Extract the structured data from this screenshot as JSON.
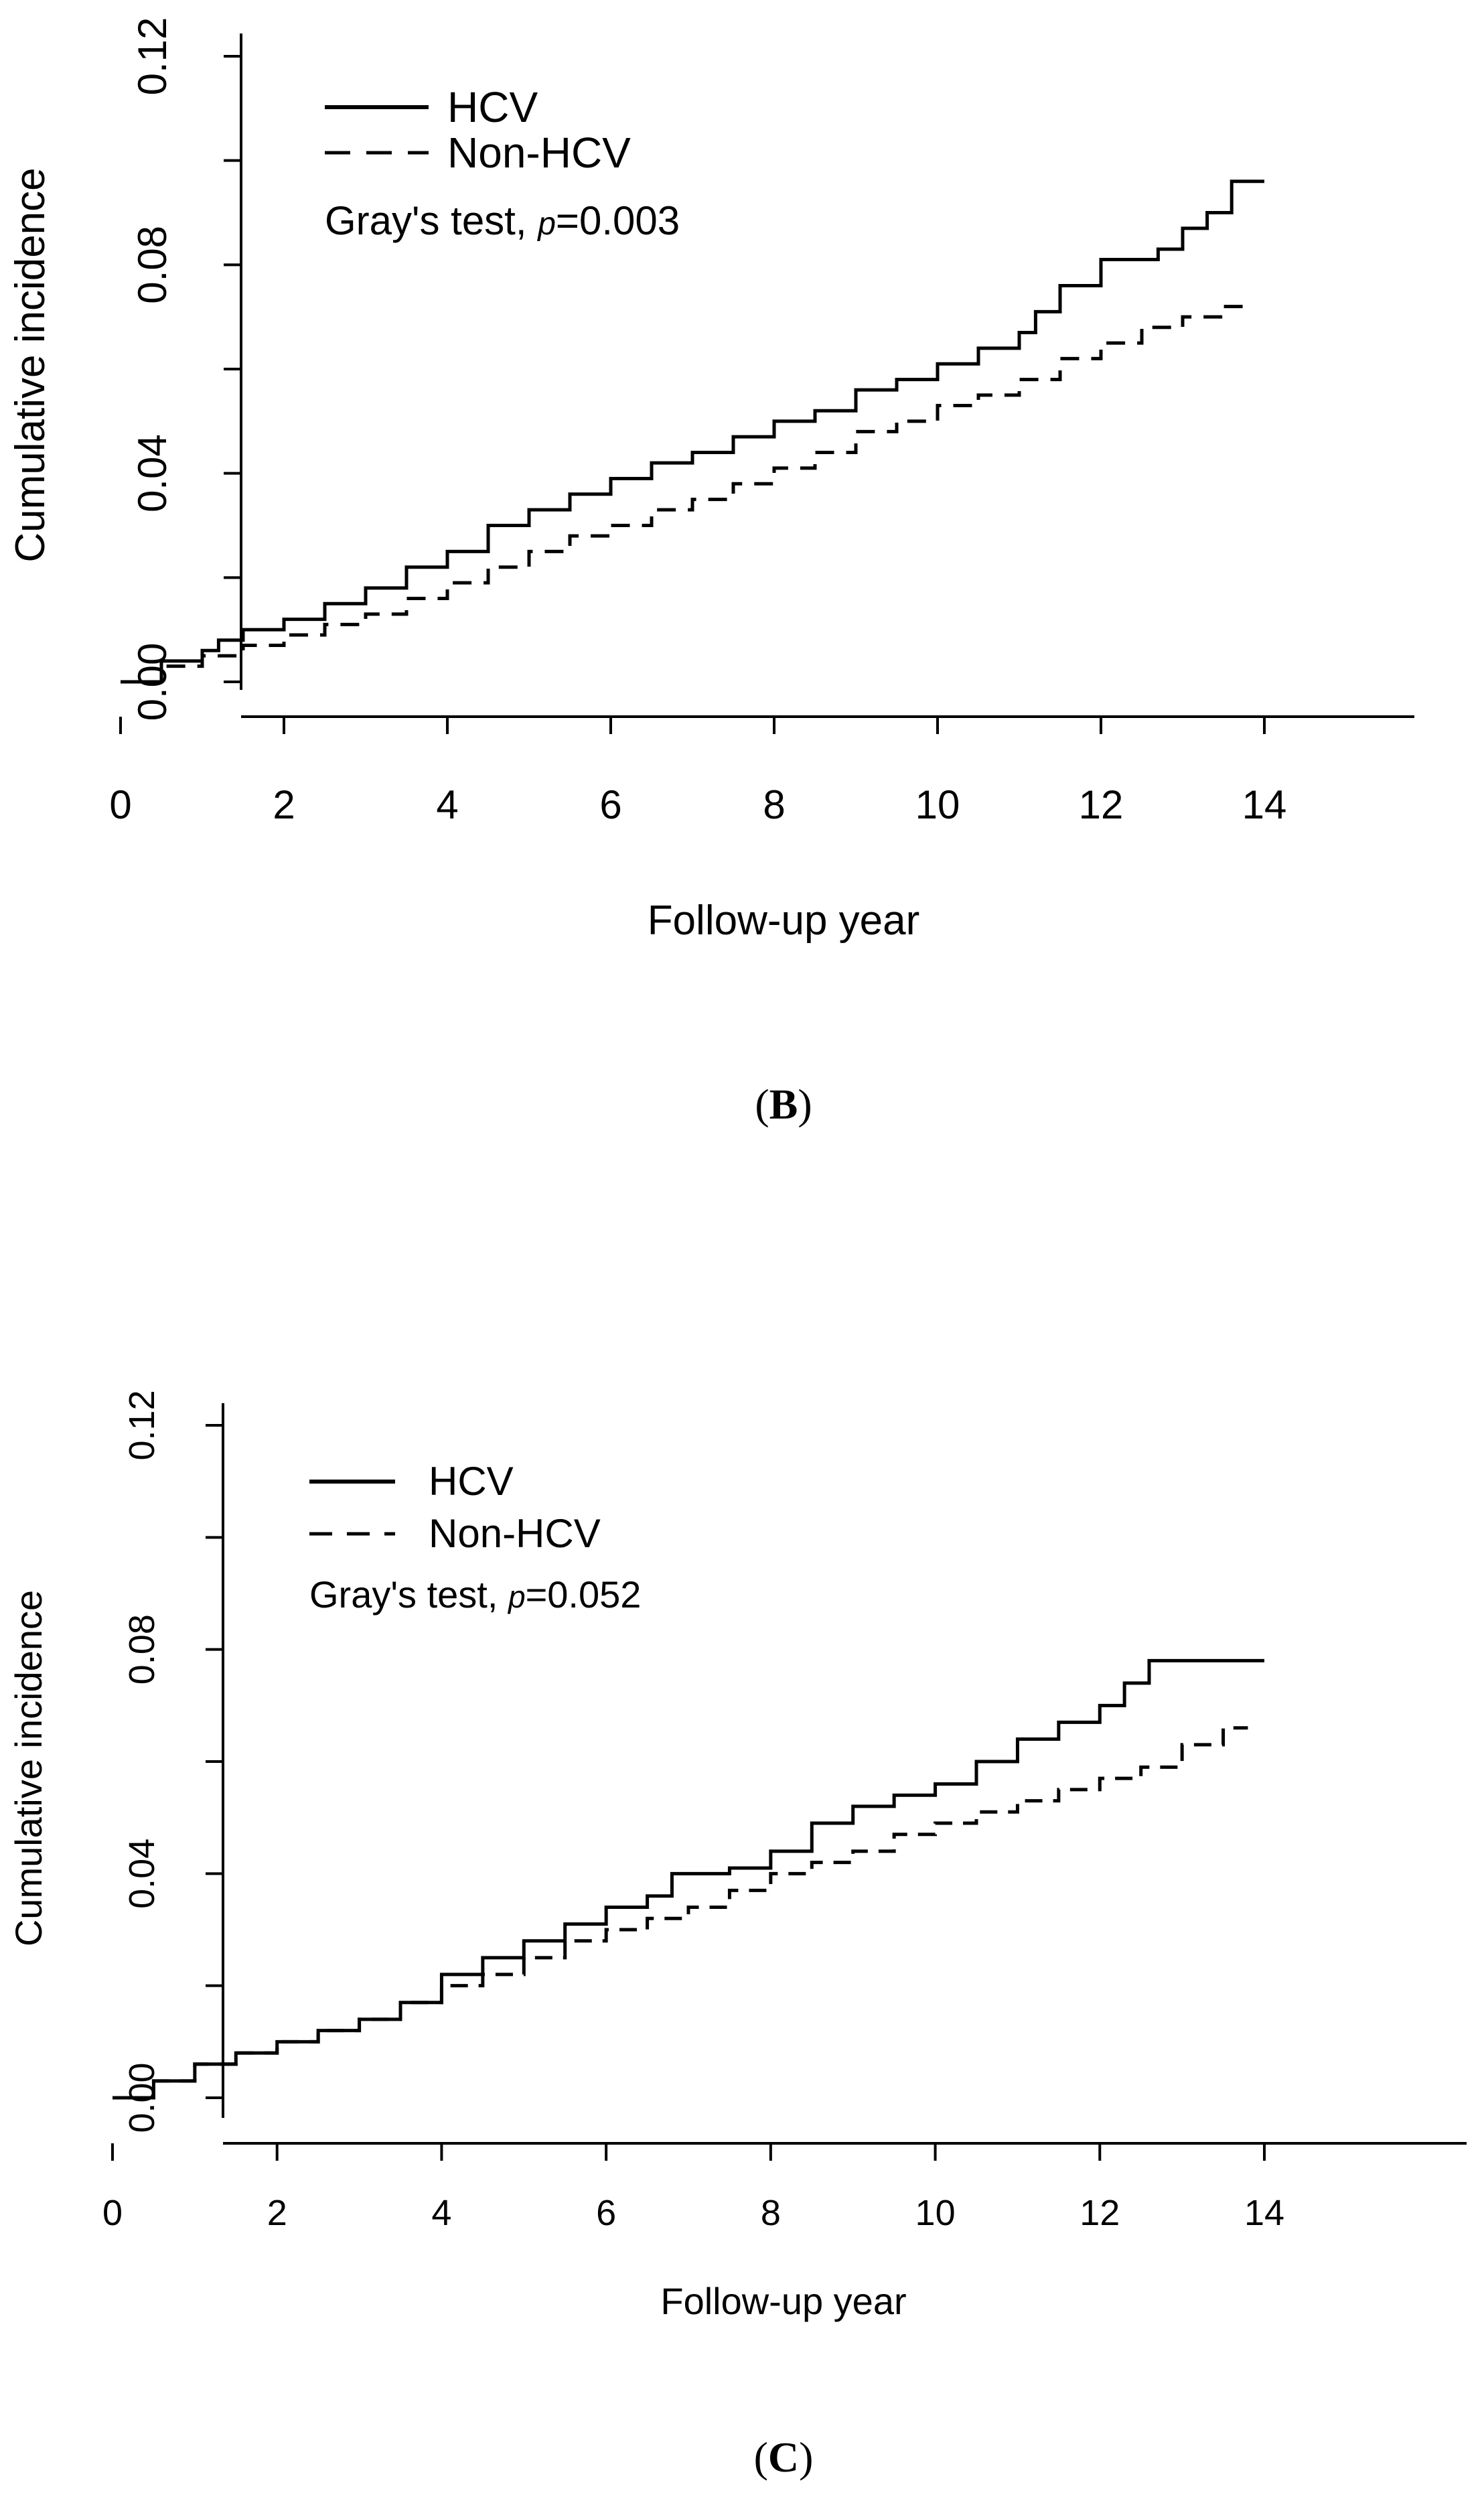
{
  "panels": [
    {
      "label_open": "(",
      "label_letter": "B",
      "label_close": ")"
    },
    {
      "label_open": "(",
      "label_letter": "C",
      "label_close": ")"
    }
  ],
  "chart_data": [
    {
      "type": "line",
      "title": "",
      "xlabel": "Follow-up year",
      "ylabel": "Cumulative incidence",
      "xlim": [
        0,
        14
      ],
      "ylim": [
        0,
        0.12
      ],
      "xticks": [
        0,
        2,
        4,
        6,
        8,
        10,
        12,
        14
      ],
      "xtick_labels": [
        "0",
        "2",
        "4",
        "6",
        "8",
        "10",
        "12",
        "14"
      ],
      "yticks": [
        0,
        0.02,
        0.04,
        0.06,
        0.08,
        0.1,
        0.12
      ],
      "ytick_labels": [
        "0.00",
        "",
        "0.04",
        "",
        "0.08",
        "",
        "0.12"
      ],
      "grid": false,
      "legend_position": "top-left",
      "annotation": {
        "prefix": "Gray's test, ",
        "p_symbol": "p",
        "value": "=0.003"
      },
      "series": [
        {
          "name": "HCV",
          "line_style": "solid",
          "x": [
            0,
            0.5,
            1.0,
            1.2,
            1.5,
            2.0,
            2.5,
            3.0,
            3.5,
            4.0,
            4.5,
            5.0,
            5.5,
            6.0,
            6.5,
            7.0,
            7.5,
            8.0,
            8.5,
            9.0,
            9.5,
            10.0,
            10.5,
            11.0,
            11.2,
            11.5,
            12.0,
            12.4,
            12.7,
            13.0,
            13.3,
            13.6,
            14.0
          ],
          "y": [
            0,
            0.004,
            0.006,
            0.008,
            0.01,
            0.012,
            0.015,
            0.018,
            0.022,
            0.025,
            0.03,
            0.033,
            0.036,
            0.039,
            0.042,
            0.044,
            0.047,
            0.05,
            0.052,
            0.056,
            0.058,
            0.061,
            0.064,
            0.067,
            0.071,
            0.076,
            0.081,
            0.081,
            0.083,
            0.087,
            0.09,
            0.096,
            0.096
          ]
        },
        {
          "name": "Non-HCV",
          "line_style": "dashed",
          "x": [
            0,
            0.5,
            1.0,
            1.5,
            2.0,
            2.5,
            3.0,
            3.5,
            4.0,
            4.5,
            5.0,
            5.5,
            6.0,
            6.5,
            7.0,
            7.5,
            8.0,
            8.5,
            9.0,
            9.5,
            10.0,
            10.5,
            11.0,
            11.5,
            12.0,
            12.5,
            13.0,
            13.5,
            13.8
          ],
          "y": [
            0,
            0.003,
            0.005,
            0.007,
            0.009,
            0.011,
            0.013,
            0.016,
            0.019,
            0.022,
            0.025,
            0.028,
            0.03,
            0.033,
            0.035,
            0.038,
            0.041,
            0.044,
            0.048,
            0.05,
            0.053,
            0.055,
            0.058,
            0.062,
            0.065,
            0.068,
            0.07,
            0.072,
            0.073
          ]
        }
      ]
    },
    {
      "type": "line",
      "title": "",
      "xlabel": "Follow-up year",
      "ylabel": "Cumulative incidence",
      "xlim": [
        0,
        14
      ],
      "ylim": [
        0,
        0.12
      ],
      "xticks": [
        0,
        2,
        4,
        6,
        8,
        10,
        12,
        14
      ],
      "xtick_labels": [
        "0",
        "2",
        "4",
        "6",
        "8",
        "10",
        "12",
        "14"
      ],
      "yticks": [
        0,
        0.02,
        0.04,
        0.06,
        0.08,
        0.1,
        0.12
      ],
      "ytick_labels": [
        "0.00",
        "",
        "0.04",
        "",
        "0.08",
        "",
        "0.12"
      ],
      "grid": false,
      "legend_position": "top-left",
      "annotation": {
        "prefix": "Gray's test, ",
        "p_symbol": "p",
        "value": "=0.052"
      },
      "series": [
        {
          "name": "HCV",
          "line_style": "solid",
          "x": [
            0,
            0.5,
            1.0,
            1.5,
            2.0,
            2.5,
            3.0,
            3.5,
            4.0,
            4.5,
            5.0,
            5.5,
            6.0,
            6.5,
            6.8,
            7.0,
            7.5,
            8.0,
            8.5,
            9.0,
            9.5,
            10.0,
            10.5,
            11.0,
            11.5,
            12.0,
            12.3,
            12.6,
            13.0,
            14.0
          ],
          "y": [
            0,
            0.003,
            0.006,
            0.008,
            0.01,
            0.012,
            0.014,
            0.017,
            0.022,
            0.025,
            0.028,
            0.031,
            0.034,
            0.036,
            0.04,
            0.04,
            0.041,
            0.044,
            0.049,
            0.052,
            0.054,
            0.056,
            0.06,
            0.064,
            0.067,
            0.07,
            0.074,
            0.078,
            0.078,
            0.078
          ]
        },
        {
          "name": "Non-HCV",
          "line_style": "dashed",
          "x": [
            0,
            0.5,
            1.0,
            1.5,
            2.0,
            2.5,
            3.0,
            3.5,
            4.0,
            4.5,
            5.0,
            5.5,
            6.0,
            6.5,
            7.0,
            7.5,
            8.0,
            8.5,
            9.0,
            9.5,
            10.0,
            10.5,
            11.0,
            11.5,
            12.0,
            12.5,
            13.0,
            13.5,
            13.8
          ],
          "y": [
            0,
            0.003,
            0.006,
            0.008,
            0.01,
            0.012,
            0.014,
            0.017,
            0.02,
            0.022,
            0.025,
            0.028,
            0.03,
            0.032,
            0.034,
            0.037,
            0.04,
            0.042,
            0.044,
            0.047,
            0.049,
            0.051,
            0.053,
            0.055,
            0.057,
            0.059,
            0.063,
            0.066,
            0.066
          ]
        }
      ]
    }
  ]
}
